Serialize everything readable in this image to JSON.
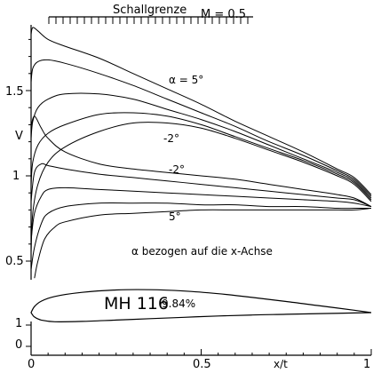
{
  "chart_data": {
    "type": "line",
    "title": "",
    "xlabel": "x/t",
    "ylabel": "V",
    "xlim": [
      0,
      1
    ],
    "ylim_velocity": [
      0.4,
      1.9
    ],
    "x_ticks": [
      "0",
      "0.5",
      "1"
    ],
    "y_ticks": [
      "0.5",
      "1",
      "1.5"
    ],
    "lower_axis_ticks": [
      "0",
      "1"
    ],
    "sonic_limit_label": "Schallgrenze",
    "mach_label": "M = 0.5",
    "annotations": [
      "α = 5°",
      "-2°",
      "-2°",
      "5°",
      "α bezogen auf die x-Achse"
    ],
    "airfoil_name": "MH 116",
    "airfoil_thickness": "9.84%",
    "series": [
      {
        "label": "α = 5°",
        "x": [
          0.0,
          0.005,
          0.02,
          0.05,
          0.1,
          0.2,
          0.3,
          0.4,
          0.5,
          0.6,
          0.7,
          0.8,
          0.9,
          0.95,
          1.0
        ],
        "y": [
          1.83,
          1.87,
          1.85,
          1.8,
          1.76,
          1.69,
          1.6,
          1.51,
          1.42,
          1.32,
          1.23,
          1.14,
          1.04,
          0.99,
          0.89
        ]
      },
      {
        "label": "",
        "x": [
          0.0,
          0.005,
          0.02,
          0.05,
          0.1,
          0.2,
          0.3,
          0.4,
          0.5,
          0.6,
          0.7,
          0.8,
          0.9,
          0.95,
          1.0
        ],
        "y": [
          1.55,
          1.63,
          1.67,
          1.68,
          1.66,
          1.6,
          1.53,
          1.45,
          1.37,
          1.29,
          1.2,
          1.12,
          1.03,
          0.98,
          0.88
        ]
      },
      {
        "label": "",
        "x": [
          0.0,
          0.005,
          0.02,
          0.05,
          0.1,
          0.2,
          0.3,
          0.4,
          0.5,
          0.6,
          0.7,
          0.8,
          0.9,
          0.95,
          1.0
        ],
        "y": [
          1.22,
          1.32,
          1.4,
          1.45,
          1.48,
          1.48,
          1.45,
          1.39,
          1.33,
          1.26,
          1.18,
          1.1,
          1.02,
          0.97,
          0.87
        ]
      },
      {
        "label": "",
        "x": [
          0.0,
          0.005,
          0.02,
          0.05,
          0.1,
          0.2,
          0.3,
          0.4,
          0.5,
          0.6,
          0.7,
          0.8,
          0.9,
          0.95,
          1.0
        ],
        "y": [
          0.95,
          1.08,
          1.18,
          1.25,
          1.3,
          1.36,
          1.37,
          1.35,
          1.3,
          1.23,
          1.16,
          1.09,
          1.01,
          0.96,
          0.86
        ]
      },
      {
        "label": "-2°",
        "x": [
          0.0,
          0.005,
          0.02,
          0.05,
          0.1,
          0.2,
          0.3,
          0.4,
          0.5,
          0.6,
          0.7,
          0.8,
          0.9,
          0.95,
          1.0
        ],
        "y": [
          0.55,
          0.78,
          0.95,
          1.08,
          1.17,
          1.26,
          1.31,
          1.31,
          1.28,
          1.22,
          1.15,
          1.08,
          1.0,
          0.95,
          0.85
        ]
      },
      {
        "label": "",
        "x": [
          0.0,
          0.01,
          0.03,
          0.05,
          0.1,
          0.2,
          0.3,
          0.4,
          0.5,
          0.6,
          0.7,
          0.8,
          0.9,
          0.95,
          1.0
        ],
        "y": [
          1.29,
          1.35,
          1.28,
          1.22,
          1.14,
          1.07,
          1.04,
          1.02,
          1.0,
          0.98,
          0.95,
          0.92,
          0.89,
          0.87,
          0.82
        ]
      },
      {
        "label": "-2°",
        "x": [
          0.0,
          0.01,
          0.03,
          0.05,
          0.1,
          0.2,
          0.3,
          0.4,
          0.5,
          0.6,
          0.7,
          0.8,
          0.9,
          0.95,
          1.0
        ],
        "y": [
          0.85,
          1.02,
          1.07,
          1.06,
          1.04,
          1.01,
          0.99,
          0.97,
          0.95,
          0.93,
          0.91,
          0.89,
          0.87,
          0.86,
          0.82
        ]
      },
      {
        "label": "",
        "x": [
          0.0,
          0.01,
          0.03,
          0.05,
          0.1,
          0.2,
          0.3,
          0.4,
          0.5,
          0.6,
          0.7,
          0.8,
          0.9,
          0.95,
          1.0
        ],
        "y": [
          0.62,
          0.78,
          0.88,
          0.92,
          0.93,
          0.92,
          0.91,
          0.9,
          0.89,
          0.88,
          0.87,
          0.86,
          0.85,
          0.84,
          0.82
        ]
      },
      {
        "label": "",
        "x": [
          0.0,
          0.01,
          0.03,
          0.05,
          0.1,
          0.2,
          0.3,
          0.4,
          0.5,
          0.6,
          0.7,
          0.8,
          0.9,
          0.95,
          1.0
        ],
        "y": [
          0.45,
          0.58,
          0.72,
          0.78,
          0.82,
          0.84,
          0.84,
          0.84,
          0.83,
          0.83,
          0.82,
          0.82,
          0.81,
          0.81,
          0.81
        ]
      },
      {
        "label": "5°",
        "x": [
          0.01,
          0.02,
          0.04,
          0.07,
          0.1,
          0.2,
          0.3,
          0.4,
          0.5,
          0.6,
          0.7,
          0.8,
          0.9,
          0.95,
          1.0
        ],
        "y": [
          0.4,
          0.5,
          0.63,
          0.7,
          0.73,
          0.77,
          0.78,
          0.79,
          0.8,
          0.8,
          0.8,
          0.8,
          0.8,
          0.8,
          0.81
        ]
      }
    ],
    "airfoil": {
      "upper": {
        "x": [
          0.0,
          0.01,
          0.03,
          0.07,
          0.15,
          0.25,
          0.35,
          0.45,
          0.55,
          0.65,
          0.75,
          0.85,
          0.95,
          1.0
        ],
        "y": [
          0.0,
          0.018,
          0.034,
          0.048,
          0.06,
          0.067,
          0.068,
          0.064,
          0.056,
          0.045,
          0.033,
          0.02,
          0.007,
          0.0
        ]
      },
      "lower": {
        "x": [
          0.0,
          0.01,
          0.03,
          0.07,
          0.15,
          0.25,
          0.35,
          0.45,
          0.55,
          0.65,
          0.75,
          0.85,
          0.95,
          1.0
        ],
        "y": [
          0.0,
          -0.013,
          -0.022,
          -0.027,
          -0.026,
          -0.022,
          -0.018,
          -0.014,
          -0.01,
          -0.007,
          -0.005,
          -0.003,
          -0.001,
          0.0
        ]
      }
    },
    "grid": false
  }
}
